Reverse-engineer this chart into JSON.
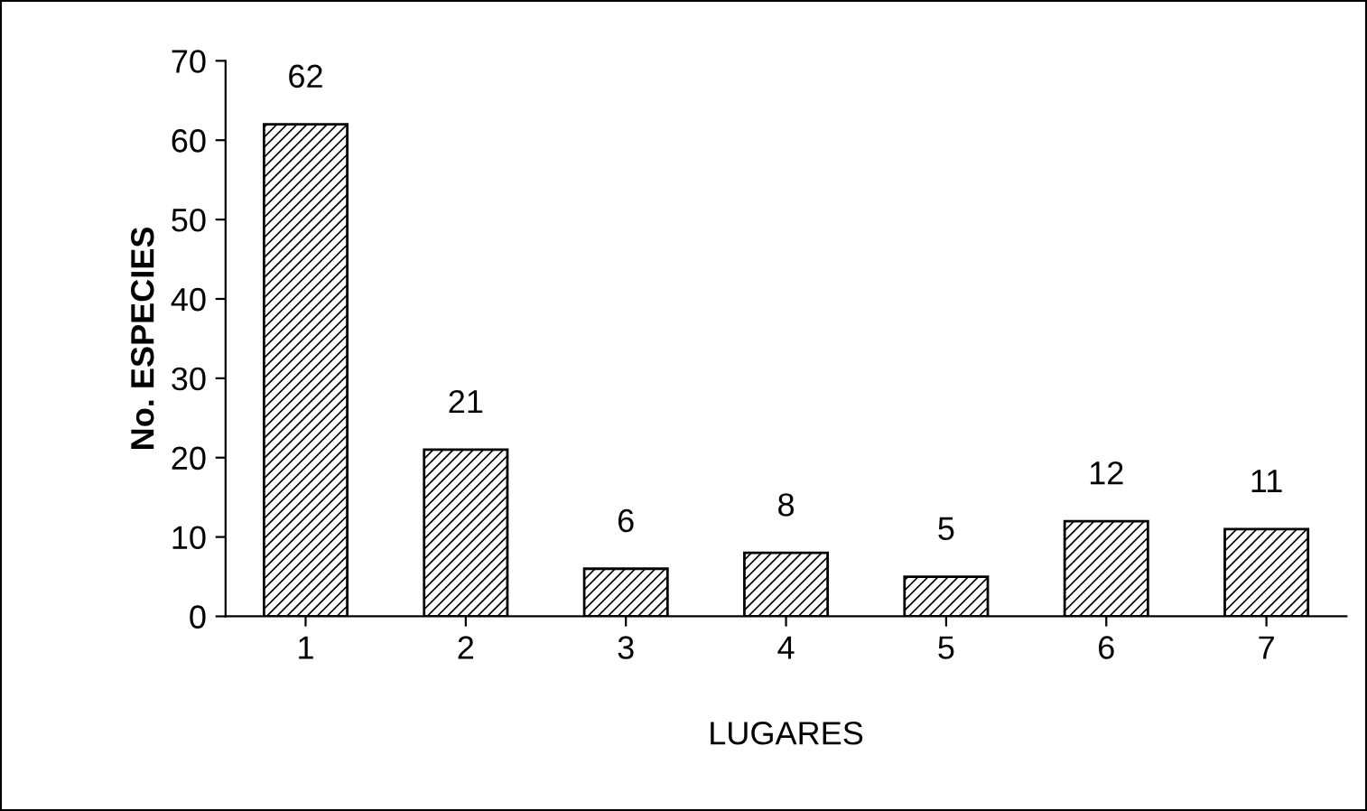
{
  "chart_data": {
    "type": "bar",
    "xlabel": "LUGARES",
    "ylabel": "No. ESPECIES",
    "categories": [
      "1",
      "2",
      "3",
      "4",
      "5",
      "6",
      "7"
    ],
    "values": [
      62,
      21,
      6,
      8,
      5,
      12,
      11
    ],
    "color": "#000000",
    "ylim": [
      0,
      70
    ],
    "yticks": [
      0,
      10,
      20,
      30,
      40,
      50,
      60,
      70
    ],
    "data_labels": true,
    "grid": false,
    "legend": false
  }
}
